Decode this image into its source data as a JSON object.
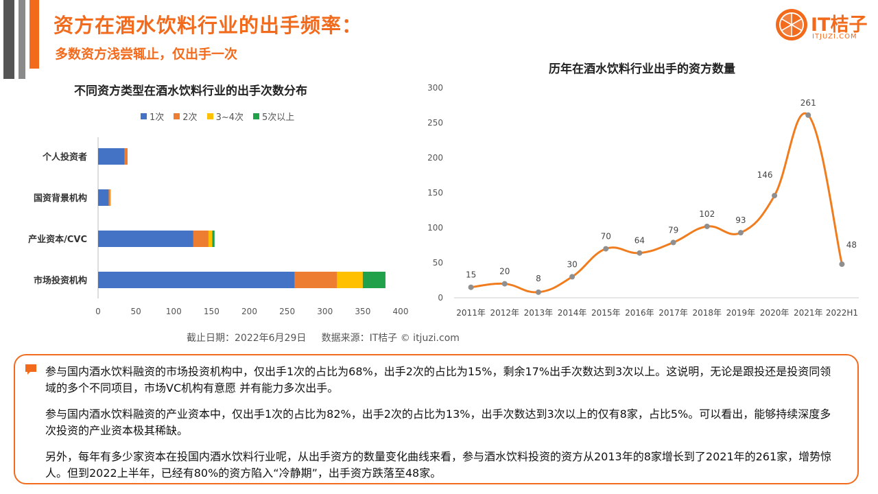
{
  "header": {
    "title": "资方在酒水饮料行业的出手频率：",
    "subtitle": "多数资方浅尝辄止，仅出手一次"
  },
  "logo": {
    "text": "IT桔子",
    "sub": "ITJUZI.COM",
    "color": "#f26b1d"
  },
  "colors": {
    "accent": "#f26b1d",
    "deco_bar_dark": "#555555",
    "deco_bar_light": "#8a8a8a"
  },
  "chart_data": [
    {
      "type": "bar",
      "orientation": "horizontal",
      "stacked": true,
      "title": "不同资方类型在酒水饮料行业的出手次数分布",
      "categories": [
        "个人投资者",
        "国资背景机构",
        "产业资本/CVC",
        "市场投资机构"
      ],
      "series": [
        {
          "name": "1次",
          "color": "#4472c4",
          "values": [
            35,
            14,
            126,
            260
          ]
        },
        {
          "name": "2次",
          "color": "#ed7d31",
          "values": [
            4,
            2,
            20,
            56
          ]
        },
        {
          "name": "3~4次",
          "color": "#ffc000",
          "values": [
            0,
            1,
            5,
            34
          ]
        },
        {
          "name": "5次以上",
          "color": "#21a24a",
          "values": [
            0,
            0,
            3,
            30
          ]
        }
      ],
      "xlim": [
        0,
        400
      ],
      "xticks": [
        "0",
        "50",
        "100",
        "150",
        "200",
        "250",
        "300",
        "350",
        "400"
      ],
      "legend": "top"
    },
    {
      "type": "line",
      "smooth": true,
      "title": "历年在酒水饮料行业出手的资方数量",
      "categories": [
        "2011年",
        "2012年",
        "2013年",
        "2014年",
        "2015年",
        "2016年",
        "2017年",
        "2018年",
        "2019年",
        "2020年",
        "2021年",
        "2022H1"
      ],
      "values": [
        15,
        20,
        8,
        30,
        70,
        64,
        79,
        102,
        93,
        146,
        261,
        48
      ],
      "data_labels": [
        "15",
        "20",
        "8",
        "30",
        "70",
        "64",
        "79",
        "102",
        "93",
        "146",
        "261",
        "48"
      ],
      "line_color": "#f07c1e",
      "marker_color": "#8f8f8f",
      "ylim": [
        0,
        300
      ],
      "yticks": [
        "0",
        "50",
        "100",
        "150",
        "200",
        "250",
        "300"
      ]
    }
  ],
  "footnote": "截止日期：2022年6月29日     数据来源：IT桔子 © itjuzi.com",
  "notes": [
    "参与国内酒水饮料融资的市场投资机构中，仅出手1次的占比为68%，出手2次的占比为15%，剩余17%出手次数达到3次以上。这说明，无论是跟投还是投资同领域的多个不同项目，市场VC机构有意愿 并有能力多次出手。",
    "参与国内酒水饮料融资的产业资本中，仅出手1次的占比为82%，出手2次的占比为13%，出手次数达到3次以上的仅有8家，占比5%。可以看出，能够持续深度多次投资的产业资本极其稀缺。",
    "另外，每年有多少家资本在投国内酒水饮料行业呢，从出手资方的数量变化曲线来看，参与酒水饮料投资的资方从2013年的8家增长到了2021年的261家，增势惊人。但到2022上半年，已经有80%的资方陷入“冷静期”，出手资方跌落至48家。"
  ]
}
